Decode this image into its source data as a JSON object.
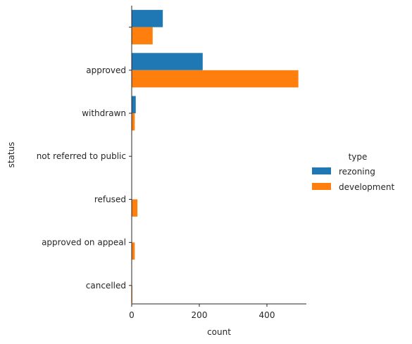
{
  "chart_data": {
    "type": "bar",
    "orientation": "horizontal",
    "categories": [
      "",
      "approved",
      "withdrawn",
      "not referred to public",
      "refused",
      "approved on appeal",
      "cancelled"
    ],
    "series": [
      {
        "name": "rezoning",
        "color": "#1f77b4",
        "values": [
          92,
          210,
          12,
          0,
          0,
          0,
          0
        ]
      },
      {
        "name": "development",
        "color": "#ff7f0e",
        "values": [
          62,
          493,
          9,
          0,
          17,
          9,
          2
        ]
      }
    ],
    "xlabel": "count",
    "ylabel": "status",
    "xlim": [
      0,
      520
    ],
    "xticks": [
      0,
      200,
      400
    ],
    "xtick_labels": [
      "0",
      "200",
      "400"
    ],
    "grid": false,
    "legend": {
      "title": "type",
      "position": "right"
    }
  }
}
